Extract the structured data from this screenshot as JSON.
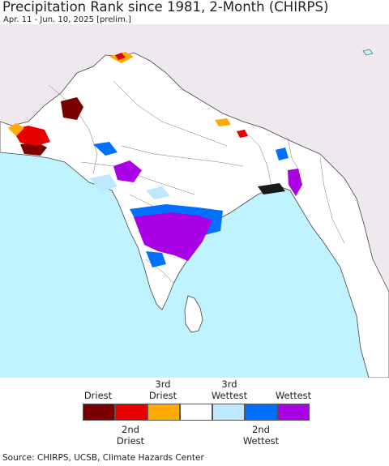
{
  "title": "Precipitation Rank since 1981, 2-Month (CHIRPS)",
  "subtitle": "Apr. 11 - Jun. 10, 2025 [prelim.]",
  "legend": {
    "items": [
      {
        "label": "Driest",
        "color": "#7a0000"
      },
      {
        "label": "2nd Driest",
        "color": "#e60000"
      },
      {
        "label": "3rd Driest",
        "color": "#ffaa00"
      },
      {
        "label": "",
        "color": "#ffffff"
      },
      {
        "label": "3rd Wettest",
        "color": "#bee8ff"
      },
      {
        "label": "2nd Wettest",
        "color": "#0070ff"
      },
      {
        "label": "Wettest",
        "color": "#a900e6"
      }
    ],
    "top_labels": {
      "driest": "Driest",
      "third_driest_line1": "3rd",
      "third_driest_line2": "Driest",
      "third_wettest_line1": "3rd",
      "third_wettest_line2": "Wettest",
      "wettest": "Wettest"
    },
    "bottom_labels": {
      "second_driest_line1": "2nd",
      "second_driest_line2": "Driest",
      "second_wettest_line1": "2nd",
      "second_wettest_line2": "Wettest"
    }
  },
  "map": {
    "ocean_color": "#bff3ff",
    "land_color": "#ffffff",
    "outside_land_color": "#efe9ef"
  },
  "source": "Source: CHIRPS, UCSB, Climate Hazards Center"
}
